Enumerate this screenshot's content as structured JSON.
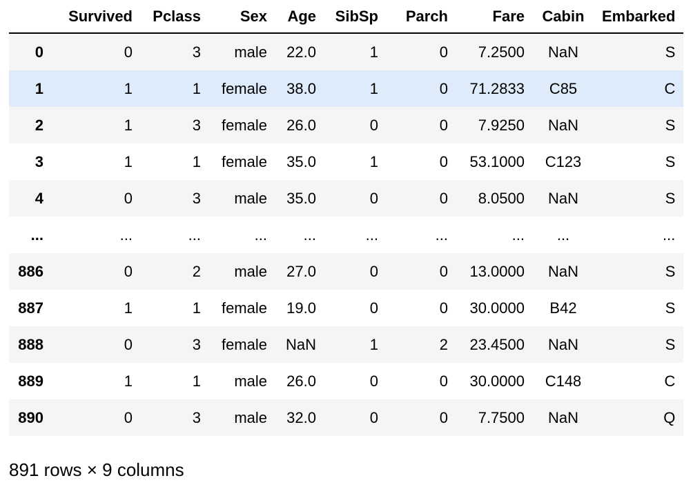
{
  "table": {
    "index_header": "",
    "columns": [
      "Survived",
      "Pclass",
      "Sex",
      "Age",
      "SibSp",
      "Parch",
      "Fare",
      "Cabin",
      "Embarked"
    ],
    "rows": [
      {
        "index": "0",
        "cells": [
          "0",
          "3",
          "male",
          "22.0",
          "1",
          "0",
          "7.2500",
          "NaN",
          "S"
        ]
      },
      {
        "index": "1",
        "cells": [
          "1",
          "1",
          "female",
          "38.0",
          "1",
          "0",
          "71.2833",
          "C85",
          "C"
        ]
      },
      {
        "index": "2",
        "cells": [
          "1",
          "3",
          "female",
          "26.0",
          "0",
          "0",
          "7.9250",
          "NaN",
          "S"
        ]
      },
      {
        "index": "3",
        "cells": [
          "1",
          "1",
          "female",
          "35.0",
          "1",
          "0",
          "53.1000",
          "C123",
          "S"
        ]
      },
      {
        "index": "4",
        "cells": [
          "0",
          "3",
          "male",
          "35.0",
          "0",
          "0",
          "8.0500",
          "NaN",
          "S"
        ]
      },
      {
        "index": "...",
        "cells": [
          "...",
          "...",
          "...",
          "...",
          "...",
          "...",
          "...",
          "...",
          "..."
        ]
      },
      {
        "index": "886",
        "cells": [
          "0",
          "2",
          "male",
          "27.0",
          "0",
          "0",
          "13.0000",
          "NaN",
          "S"
        ]
      },
      {
        "index": "887",
        "cells": [
          "1",
          "1",
          "female",
          "19.0",
          "0",
          "0",
          "30.0000",
          "B42",
          "S"
        ]
      },
      {
        "index": "888",
        "cells": [
          "0",
          "3",
          "female",
          "NaN",
          "1",
          "2",
          "23.4500",
          "NaN",
          "S"
        ]
      },
      {
        "index": "889",
        "cells": [
          "1",
          "1",
          "male",
          "26.0",
          "0",
          "0",
          "30.0000",
          "C148",
          "C"
        ]
      },
      {
        "index": "890",
        "cells": [
          "0",
          "3",
          "male",
          "32.0",
          "0",
          "0",
          "7.7500",
          "NaN",
          "Q"
        ]
      }
    ],
    "hovered_row": "1",
    "shape_text": "891 rows × 9 columns"
  },
  "colors": {
    "hover_row": "#deebfa",
    "striped_row": "#f5f5f5",
    "header_border": "#000000"
  }
}
